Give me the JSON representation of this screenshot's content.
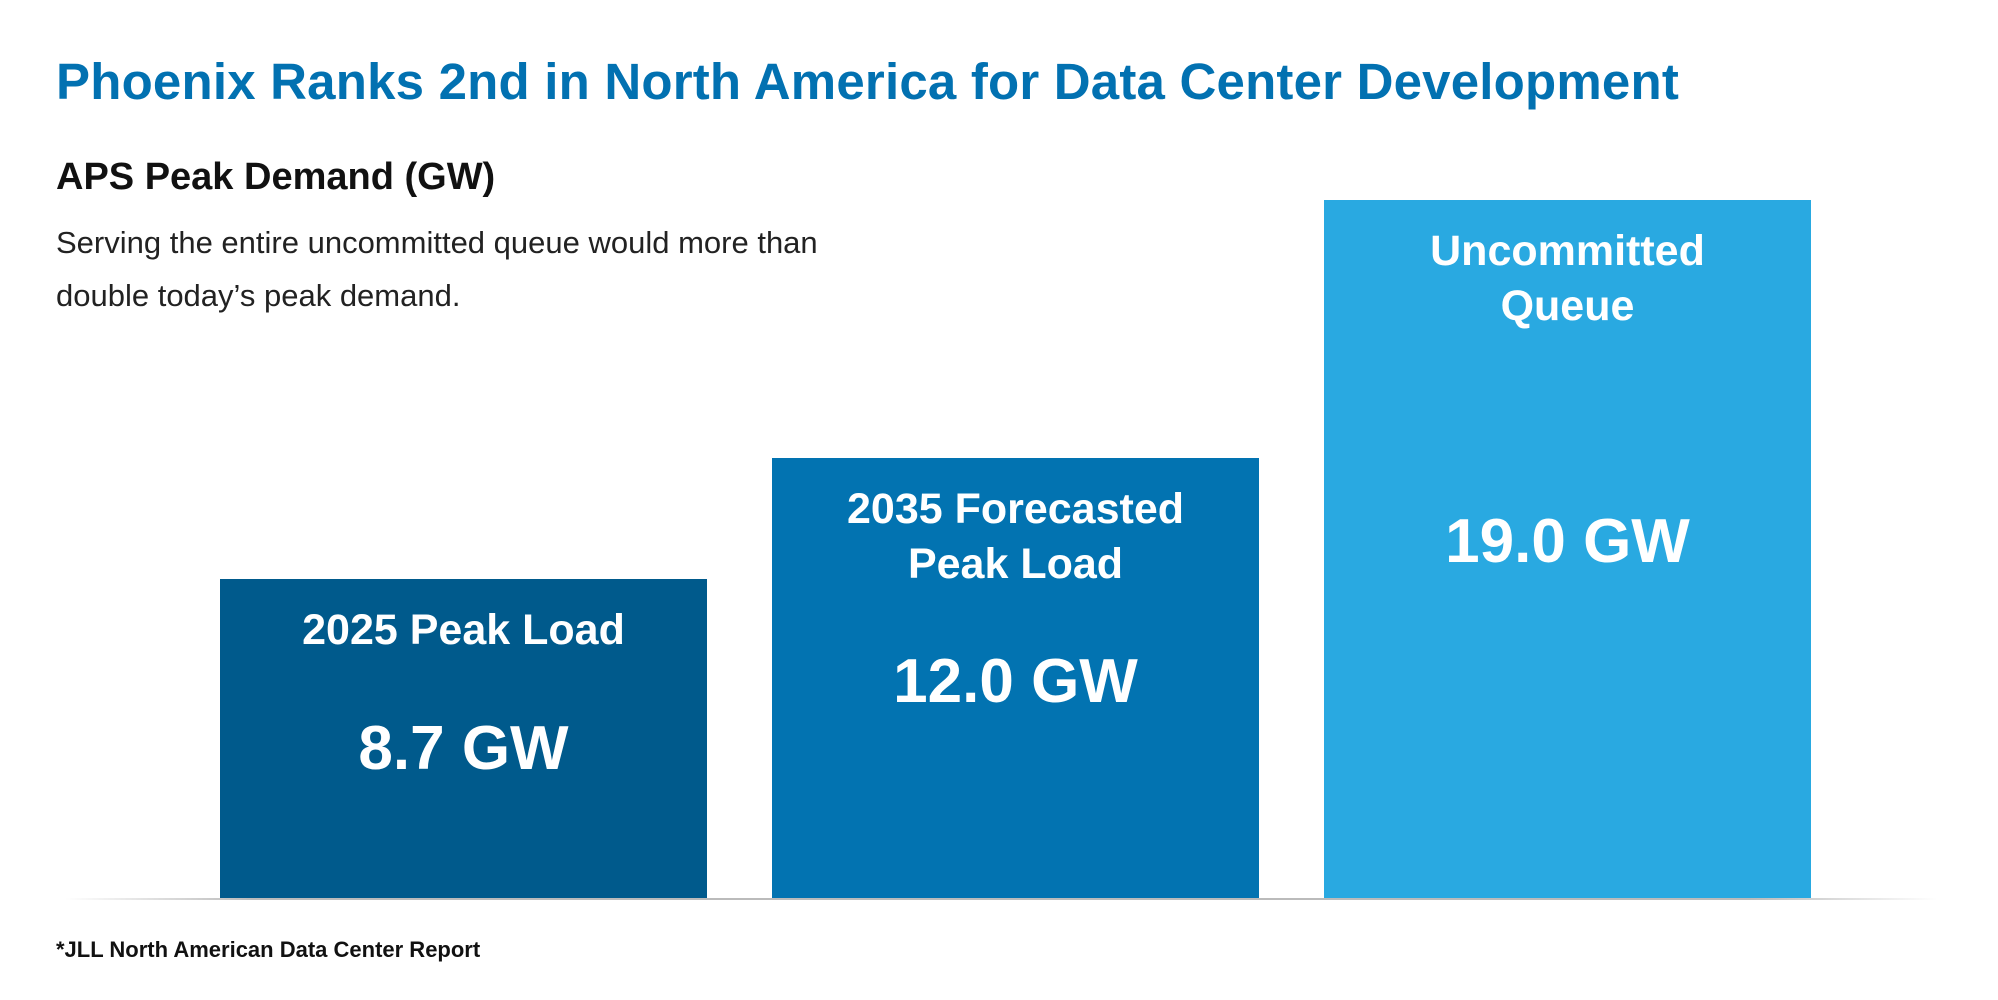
{
  "chart_data": {
    "type": "bar",
    "title": "Phoenix Ranks 2nd in North America for Data Center Development",
    "subtitle": "APS Peak Demand (GW)",
    "description": [
      "Serving the entire uncommitted queue would more than",
      "double today’s peak demand."
    ],
    "categories": [
      [
        "2025 Peak Load"
      ],
      [
        "2035 Forecasted",
        "Peak Load"
      ],
      [
        "Uncommitted",
        "Queue"
      ]
    ],
    "values": [
      8.7,
      12.0,
      19.0
    ],
    "value_labels": [
      "8.7 GW",
      "12.0 GW",
      "19.0 GW"
    ],
    "colors": [
      "#005a8c",
      "#0273b1",
      "#29a9e1"
    ],
    "ylim": [
      0,
      19.0
    ],
    "grid": false,
    "footnote": "*JLL North American Data Center Report"
  }
}
